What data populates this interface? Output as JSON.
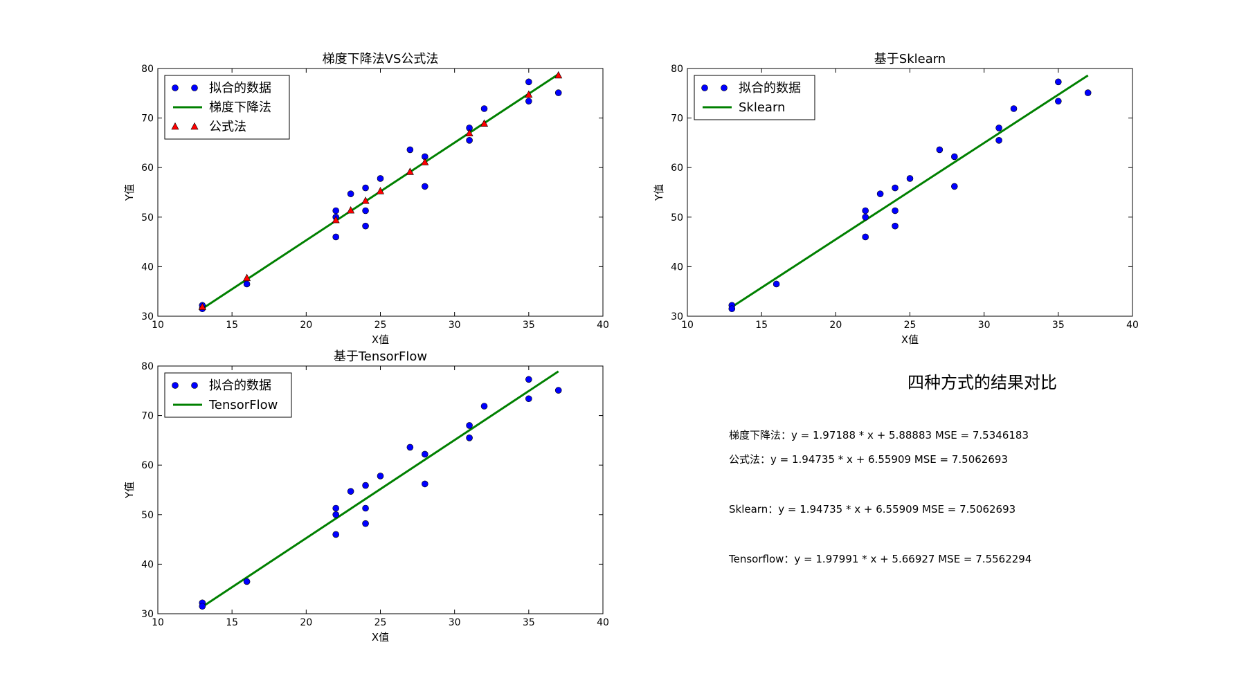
{
  "chart_data": [
    {
      "type": "scatter",
      "title": "梯度下降法VS公式法",
      "xlabel": "X值",
      "ylabel": "Y值",
      "xlim": [
        10,
        40
      ],
      "ylim": [
        30,
        80
      ],
      "xticks": [
        10,
        15,
        20,
        25,
        30,
        35,
        40
      ],
      "yticks": [
        30,
        40,
        50,
        60,
        70,
        80
      ],
      "legend_position": "top-left",
      "series": [
        {
          "name": "拟合的数据",
          "kind": "points",
          "marker": "circle",
          "color": "#0000ff",
          "x": [
            13,
            13,
            16,
            22,
            22,
            22,
            23,
            24,
            24,
            24,
            25,
            27,
            28,
            28,
            31,
            31,
            32,
            35,
            35,
            37
          ],
          "y": [
            32.2,
            31.5,
            36.5,
            46,
            50,
            51.3,
            54.7,
            55.9,
            51.3,
            48.2,
            57.8,
            63.6,
            62.2,
            56.2,
            68,
            65.5,
            71.9,
            77.3,
            73.4,
            75.1
          ]
        },
        {
          "name": "梯度下降法",
          "kind": "line",
          "color": "#008000",
          "x": [
            13,
            37
          ],
          "y": [
            31.52,
            78.84
          ]
        },
        {
          "name": "公式法",
          "kind": "points",
          "marker": "triangle",
          "color": "#ff0000",
          "x": [
            13,
            16,
            22,
            23,
            24,
            25,
            27,
            28,
            31,
            32,
            35,
            37
          ],
          "y": [
            31.87,
            37.71,
            49.4,
            51.35,
            53.29,
            55.24,
            59.13,
            61.08,
            66.92,
            68.87,
            74.72,
            78.61
          ]
        }
      ]
    },
    {
      "type": "scatter",
      "title": "基于Sklearn",
      "xlabel": "X值",
      "ylabel": "Y值",
      "xlim": [
        10,
        40
      ],
      "ylim": [
        30,
        80
      ],
      "xticks": [
        10,
        15,
        20,
        25,
        30,
        35,
        40
      ],
      "yticks": [
        30,
        40,
        50,
        60,
        70,
        80
      ],
      "legend_position": "top-left",
      "series": [
        {
          "name": "拟合的数据",
          "kind": "points",
          "marker": "circle",
          "color": "#0000ff",
          "x": [
            13,
            13,
            16,
            22,
            22,
            22,
            23,
            24,
            24,
            24,
            25,
            27,
            28,
            28,
            31,
            31,
            32,
            35,
            35,
            37
          ],
          "y": [
            32.2,
            31.5,
            36.5,
            46,
            50,
            51.3,
            54.7,
            55.9,
            51.3,
            48.2,
            57.8,
            63.6,
            62.2,
            56.2,
            68,
            65.5,
            71.9,
            77.3,
            73.4,
            75.1
          ]
        },
        {
          "name": "Sklearn",
          "kind": "line",
          "color": "#008000",
          "x": [
            13,
            37
          ],
          "y": [
            31.87,
            78.61
          ]
        }
      ]
    },
    {
      "type": "scatter",
      "title": "基于TensorFlow",
      "xlabel": "X值",
      "ylabel": "Y值",
      "xlim": [
        10,
        40
      ],
      "ylim": [
        30,
        80
      ],
      "xticks": [
        10,
        15,
        20,
        25,
        30,
        35,
        40
      ],
      "yticks": [
        30,
        40,
        50,
        60,
        70,
        80
      ],
      "legend_position": "top-left",
      "series": [
        {
          "name": "拟合的数据",
          "kind": "points",
          "marker": "circle",
          "color": "#0000ff",
          "x": [
            13,
            13,
            16,
            22,
            22,
            22,
            23,
            24,
            24,
            24,
            25,
            27,
            28,
            28,
            31,
            31,
            32,
            35,
            35,
            37
          ],
          "y": [
            32.2,
            31.5,
            36.5,
            46,
            50,
            51.3,
            54.7,
            55.9,
            51.3,
            48.2,
            57.8,
            63.6,
            62.2,
            56.2,
            68,
            65.5,
            71.9,
            77.3,
            73.4,
            75.1
          ]
        },
        {
          "name": "TensorFlow",
          "kind": "line",
          "color": "#008000",
          "x": [
            13,
            37
          ],
          "y": [
            31.4,
            78.91
          ]
        }
      ]
    }
  ],
  "comparison": {
    "title": "四种方式的结果对比",
    "lines": [
      "梯度下降法：y = 1.97188 * x + 5.88883  MSE = 7.5346183",
      "公式法：y = 1.94735 * x + 6.55909  MSE = 7.5062693",
      "Sklearn：y = 1.94735 * x + 6.55909  MSE = 7.5062693",
      "Tensorflow：y = 1.97991 * x + 5.66927  MSE = 7.5562294"
    ]
  }
}
